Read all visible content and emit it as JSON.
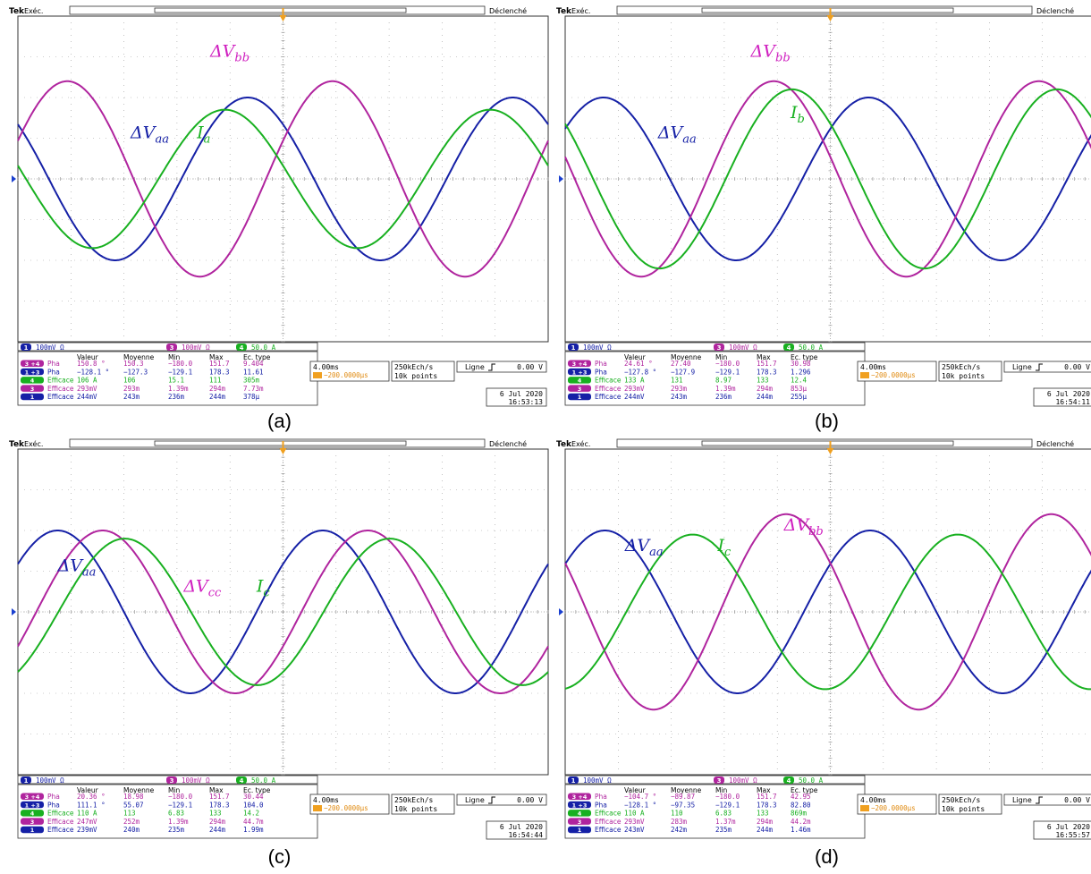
{
  "chart_data": [
    {
      "panel_label": "(a)",
      "type": "line",
      "header": {
        "brand": "Tek",
        "mode": "Exéc.",
        "trigger_state": "Déclenché"
      },
      "ylim": [
        -4,
        4
      ],
      "xlim": [
        0,
        40
      ],
      "series": [
        {
          "id": "ch1",
          "color": "#1520a6",
          "amplitude_div": 2.0,
          "period_ms": 20,
          "phase_deg": 138
        },
        {
          "id": "ch3",
          "color": "#b0249e",
          "amplitude_div": 2.4,
          "period_ms": 20,
          "phase_deg": 23
        },
        {
          "id": "ch4",
          "color": "#18b020",
          "amplitude_div": 1.7,
          "period_ms": 20,
          "phase_deg": 169
        }
      ],
      "annotations": [
        {
          "base": "ΔV",
          "sub": "aa",
          "color": "#1520a6",
          "x": 8.5,
          "y": 1.0
        },
        {
          "base": "I",
          "sub": "a",
          "color": "#18b020",
          "x": 13.5,
          "y": 1.0
        },
        {
          "base": "ΔV",
          "sub": "bb",
          "color": "#d020c0",
          "x": 14.5,
          "y": 3.0
        }
      ],
      "scale_bar": {
        "ch1_num": "1",
        "ch1": "100mV Ω",
        "ch3_num": "3",
        "ch3": "100mV Ω",
        "ch4_num": "4",
        "ch4": "50.0 A"
      },
      "meas_header": [
        "Valeur",
        "Moyenne",
        "Min",
        "Max",
        "Ec. type"
      ],
      "meas_rows": [
        {
          "chan": "3 +4",
          "label": "Pha",
          "color": "#b0249e",
          "values": [
            "150.8 °",
            "150.3",
            "−180.0",
            "151.7",
            "9.404"
          ]
        },
        {
          "chan": "1 +3",
          "label": "Pha",
          "color": "#1520a6",
          "values": [
            "−128.1 °",
            "−127.3",
            "−129.1",
            "178.3",
            "11.61"
          ]
        },
        {
          "chan": "4",
          "label": "Efficace",
          "color": "#18b020",
          "values": [
            "106 A",
            "106",
            "15.1",
            "111",
            "305m"
          ]
        },
        {
          "chan": "3",
          "label": "Efficace",
          "color": "#b0249e",
          "values": [
            "293mV",
            "293m",
            "1.39m",
            "294m",
            "7.73m"
          ]
        },
        {
          "chan": "1",
          "label": "Efficace",
          "color": "#1520a6",
          "values": [
            "244mV",
            "243m",
            "236m",
            "244m",
            "378µ"
          ]
        }
      ],
      "timebase": "4.00ms",
      "trig_pos": "−200.0000µs",
      "sample_rate": "250kEch/s",
      "record": "10k points",
      "trig_label": "Ligne",
      "trig_level": "0.00 V",
      "date": "6 Jul 2020",
      "time": "16:53:13"
    },
    {
      "panel_label": "(b)",
      "type": "line",
      "header": {
        "brand": "Tek",
        "mode": "Exéc.",
        "trigger_state": "Déclenché"
      },
      "ylim": [
        -4,
        4
      ],
      "xlim": [
        0,
        40
      ],
      "series": [
        {
          "id": "ch1",
          "color": "#1520a6",
          "amplitude_div": 2.0,
          "period_ms": 20,
          "phase_deg": 38
        },
        {
          "id": "ch3",
          "color": "#b0249e",
          "amplitude_div": 2.4,
          "period_ms": 20,
          "phase_deg": 167
        },
        {
          "id": "ch4",
          "color": "#18b020",
          "amplitude_div": 2.2,
          "period_ms": 20,
          "phase_deg": 142
        }
      ],
      "annotations": [
        {
          "base": "ΔV",
          "sub": "aa",
          "color": "#1520a6",
          "x": 7.0,
          "y": 1.0
        },
        {
          "base": "I",
          "sub": "b",
          "color": "#18b020",
          "x": 17.0,
          "y": 1.5
        },
        {
          "base": "ΔV",
          "sub": "bb",
          "color": "#d020c0",
          "x": 14.0,
          "y": 3.0
        }
      ],
      "scale_bar": {
        "ch1_num": "1",
        "ch1": "100mV Ω",
        "ch3_num": "3",
        "ch3": "100mV Ω",
        "ch4_num": "4",
        "ch4": "50.0 A"
      },
      "meas_header": [
        "Valeur",
        "Moyenne",
        "Min",
        "Max",
        "Ec. type"
      ],
      "meas_rows": [
        {
          "chan": "3 +4",
          "label": "Pha",
          "color": "#b0249e",
          "values": [
            "24.61 °",
            "27.40",
            "−180.0",
            "151.7",
            "30.98"
          ]
        },
        {
          "chan": "1 +3",
          "label": "Pha",
          "color": "#1520a6",
          "values": [
            "−127.8 °",
            "−127.9",
            "−129.1",
            "178.3",
            "1.296"
          ]
        },
        {
          "chan": "4",
          "label": "Efficace",
          "color": "#18b020",
          "values": [
            "133 A",
            "131",
            "8.97",
            "133",
            "12.4"
          ]
        },
        {
          "chan": "3",
          "label": "Efficace",
          "color": "#b0249e",
          "values": [
            "293mV",
            "293m",
            "1.39m",
            "294m",
            "853µ"
          ]
        },
        {
          "chan": "1",
          "label": "Efficace",
          "color": "#1520a6",
          "values": [
            "244mV",
            "243m",
            "236m",
            "244m",
            "255µ"
          ]
        }
      ],
      "timebase": "4.00ms",
      "trig_pos": "−200.0000µs",
      "sample_rate": "250kEch/s",
      "record": "10k points",
      "trig_label": "Ligne",
      "trig_level": "0.00 V",
      "date": "6 Jul 2020",
      "time": "16:54:11"
    },
    {
      "panel_label": "(c)",
      "type": "line",
      "header": {
        "brand": "Tek",
        "mode": "Exéc.",
        "trigger_state": "Déclenché"
      },
      "ylim": [
        -4,
        4
      ],
      "xlim": [
        0,
        40
      ],
      "series": [
        {
          "id": "ch1",
          "color": "#1520a6",
          "amplitude_div": 2.0,
          "period_ms": 20,
          "phase_deg": 36
        },
        {
          "id": "ch3",
          "color": "#b0249e",
          "amplitude_div": 2.0,
          "period_ms": 20,
          "phase_deg": -25
        },
        {
          "id": "ch4",
          "color": "#18b020",
          "amplitude_div": 1.8,
          "period_ms": 20,
          "phase_deg": -55
        }
      ],
      "annotations": [
        {
          "base": "ΔV",
          "sub": "aa",
          "color": "#1520a6",
          "x": 3.0,
          "y": 1.0
        },
        {
          "base": "ΔV",
          "sub": "cc",
          "color": "#d020c0",
          "x": 12.5,
          "y": 0.5
        },
        {
          "base": "I",
          "sub": "c",
          "color": "#18b020",
          "x": 18.0,
          "y": 0.5
        }
      ],
      "scale_bar": {
        "ch1_num": "1",
        "ch1": "100mV Ω",
        "ch3_num": "3",
        "ch3": "100mV Ω",
        "ch4_num": "4",
        "ch4": "50.0 A"
      },
      "meas_header": [
        "Valeur",
        "Moyenne",
        "Min",
        "Max",
        "Ec. type"
      ],
      "meas_rows": [
        {
          "chan": "3 +4",
          "label": "Pha",
          "color": "#b0249e",
          "values": [
            "20.36 °",
            "18.98",
            "−180.0",
            "151.7",
            "30.44"
          ]
        },
        {
          "chan": "1 +3",
          "label": "Pha",
          "color": "#1520a6",
          "values": [
            "111.1 °",
            "55.07",
            "−129.1",
            "178.3",
            "104.0"
          ]
        },
        {
          "chan": "4",
          "label": "Efficace",
          "color": "#18b020",
          "values": [
            "110 A",
            "113",
            "6.83",
            "133",
            "14.2"
          ]
        },
        {
          "chan": "3",
          "label": "Efficace",
          "color": "#b0249e",
          "values": [
            "247mV",
            "252m",
            "1.39m",
            "294m",
            "44.7m"
          ]
        },
        {
          "chan": "1",
          "label": "Efficace",
          "color": "#1520a6",
          "values": [
            "239mV",
            "240m",
            "235m",
            "244m",
            "1.99m"
          ]
        }
      ],
      "timebase": "4.00ms",
      "trig_pos": "−200.0000µs",
      "sample_rate": "250kEch/s",
      "record": "10k points",
      "trig_label": "Ligne",
      "trig_level": "0.00 V",
      "date": "6 Jul 2020",
      "time": "16:54:44"
    },
    {
      "panel_label": "(d)",
      "type": "line",
      "header": {
        "brand": "Tek",
        "mode": "Exéc.",
        "trigger_state": "Déclenché"
      },
      "ylim": [
        -4,
        4
      ],
      "xlim": [
        0,
        40
      ],
      "series": [
        {
          "id": "ch1",
          "color": "#1520a6",
          "amplitude_div": 2.0,
          "period_ms": 20,
          "phase_deg": 36
        },
        {
          "id": "ch3",
          "color": "#b0249e",
          "amplitude_div": 2.4,
          "period_ms": 20,
          "phase_deg": 150
        },
        {
          "id": "ch4",
          "color": "#18b020",
          "amplitude_div": 1.9,
          "period_ms": 20,
          "phase_deg": -83
        }
      ],
      "annotations": [
        {
          "base": "ΔV",
          "sub": "aa",
          "color": "#1520a6",
          "x": 4.5,
          "y": 1.5
        },
        {
          "base": "I",
          "sub": "c",
          "color": "#18b020",
          "x": 11.5,
          "y": 1.5
        },
        {
          "base": "ΔV",
          "sub": "bb",
          "color": "#d020c0",
          "x": 16.5,
          "y": 2.0
        }
      ],
      "scale_bar": {
        "ch1_num": "1",
        "ch1": "100mV Ω",
        "ch3_num": "3",
        "ch3": "100mV Ω",
        "ch4_num": "4",
        "ch4": "50.0 A"
      },
      "meas_header": [
        "Valeur",
        "Moyenne",
        "Min",
        "Max",
        "Ec. type"
      ],
      "meas_rows": [
        {
          "chan": "3 +4",
          "label": "Pha",
          "color": "#b0249e",
          "values": [
            "−104.7 °",
            "−89.87",
            "−180.0",
            "151.7",
            "42.95"
          ]
        },
        {
          "chan": "1 +3",
          "label": "Pha",
          "color": "#1520a6",
          "values": [
            "−128.1 °",
            "−97.35",
            "−129.1",
            "178.3",
            "82.80"
          ]
        },
        {
          "chan": "4",
          "label": "Efficace",
          "color": "#18b020",
          "values": [
            "110 A",
            "110",
            "6.83",
            "133",
            "869m"
          ]
        },
        {
          "chan": "3",
          "label": "Efficace",
          "color": "#b0249e",
          "values": [
            "293mV",
            "283m",
            "1.37m",
            "294m",
            "44.2m"
          ]
        },
        {
          "chan": "1",
          "label": "Efficace",
          "color": "#1520a6",
          "values": [
            "243mV",
            "242m",
            "235m",
            "244m",
            "1.46m"
          ]
        }
      ],
      "timebase": "4.00ms",
      "trig_pos": "−200.0000µs",
      "sample_rate": "250kEch/s",
      "record": "10k points",
      "trig_label": "Ligne",
      "trig_level": "0.00 V",
      "date": "6 Jul 2020",
      "time": "16:55:57"
    }
  ]
}
